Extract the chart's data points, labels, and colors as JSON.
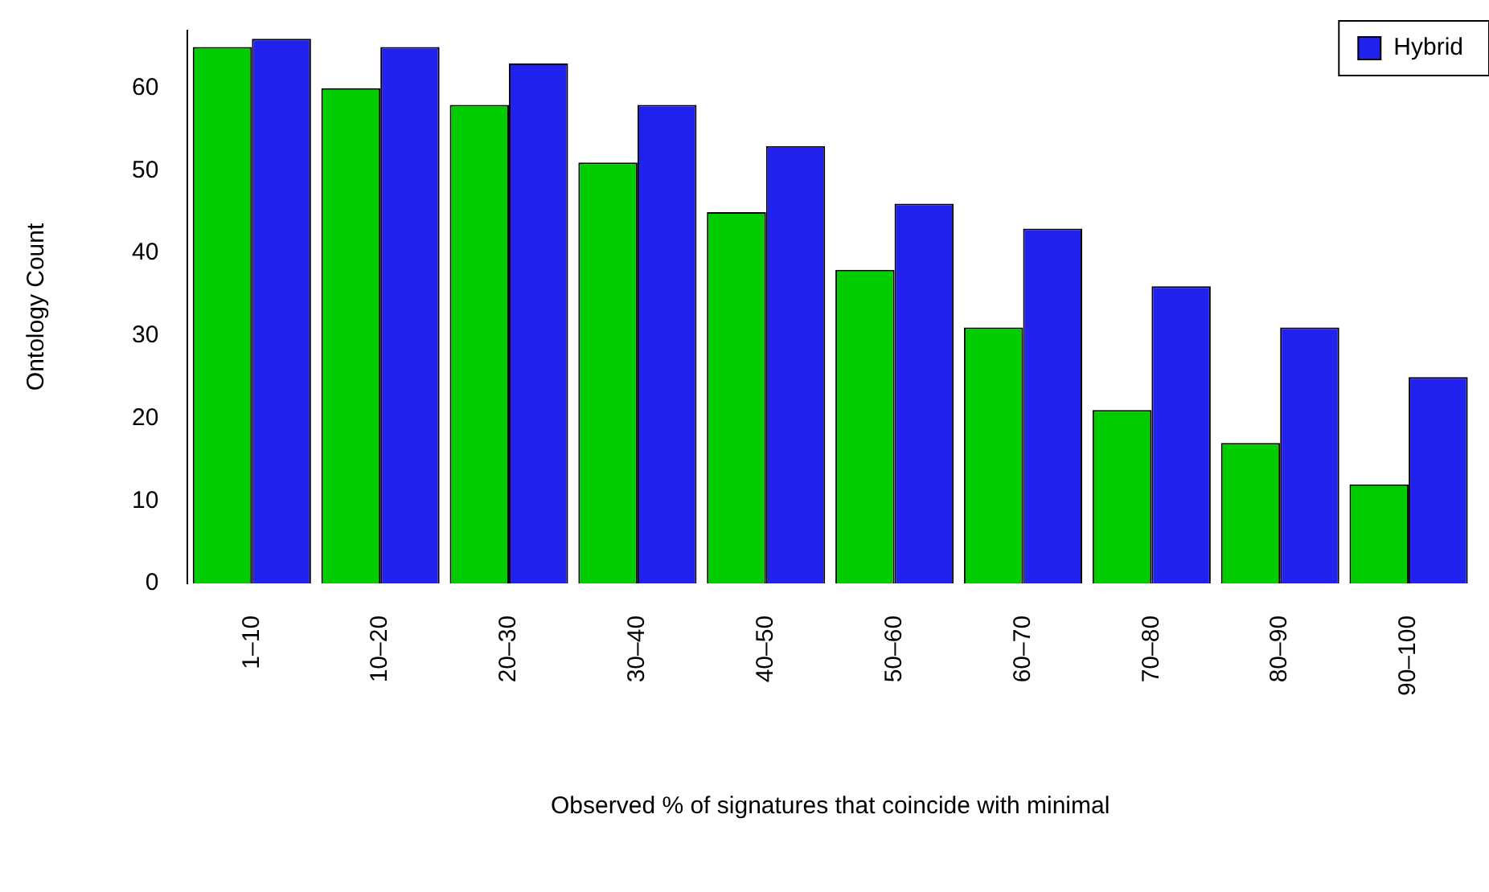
{
  "chart_data": {
    "type": "bar",
    "xlabel": "Observed % of signatures that coincide with minimal",
    "ylabel": "Ontology Count",
    "categories": [
      "1–10",
      "10–20",
      "20–30",
      "30–40",
      "40–50",
      "50–60",
      "60–70",
      "70–80",
      "80–90",
      "90–100"
    ],
    "series": [
      {
        "color": "#00cc00",
        "values": [
          65,
          60,
          58,
          51,
          45,
          38,
          31,
          21,
          17,
          12
        ]
      },
      {
        "name": "Hybrid",
        "color": "#2222ee",
        "values": [
          66,
          65,
          63,
          58,
          53,
          46,
          43,
          36,
          31,
          25
        ]
      }
    ],
    "ylim": [
      0,
      67
    ],
    "yticks": [
      0,
      10,
      20,
      30,
      40,
      50,
      60
    ],
    "grid": false,
    "legend": "top right"
  }
}
